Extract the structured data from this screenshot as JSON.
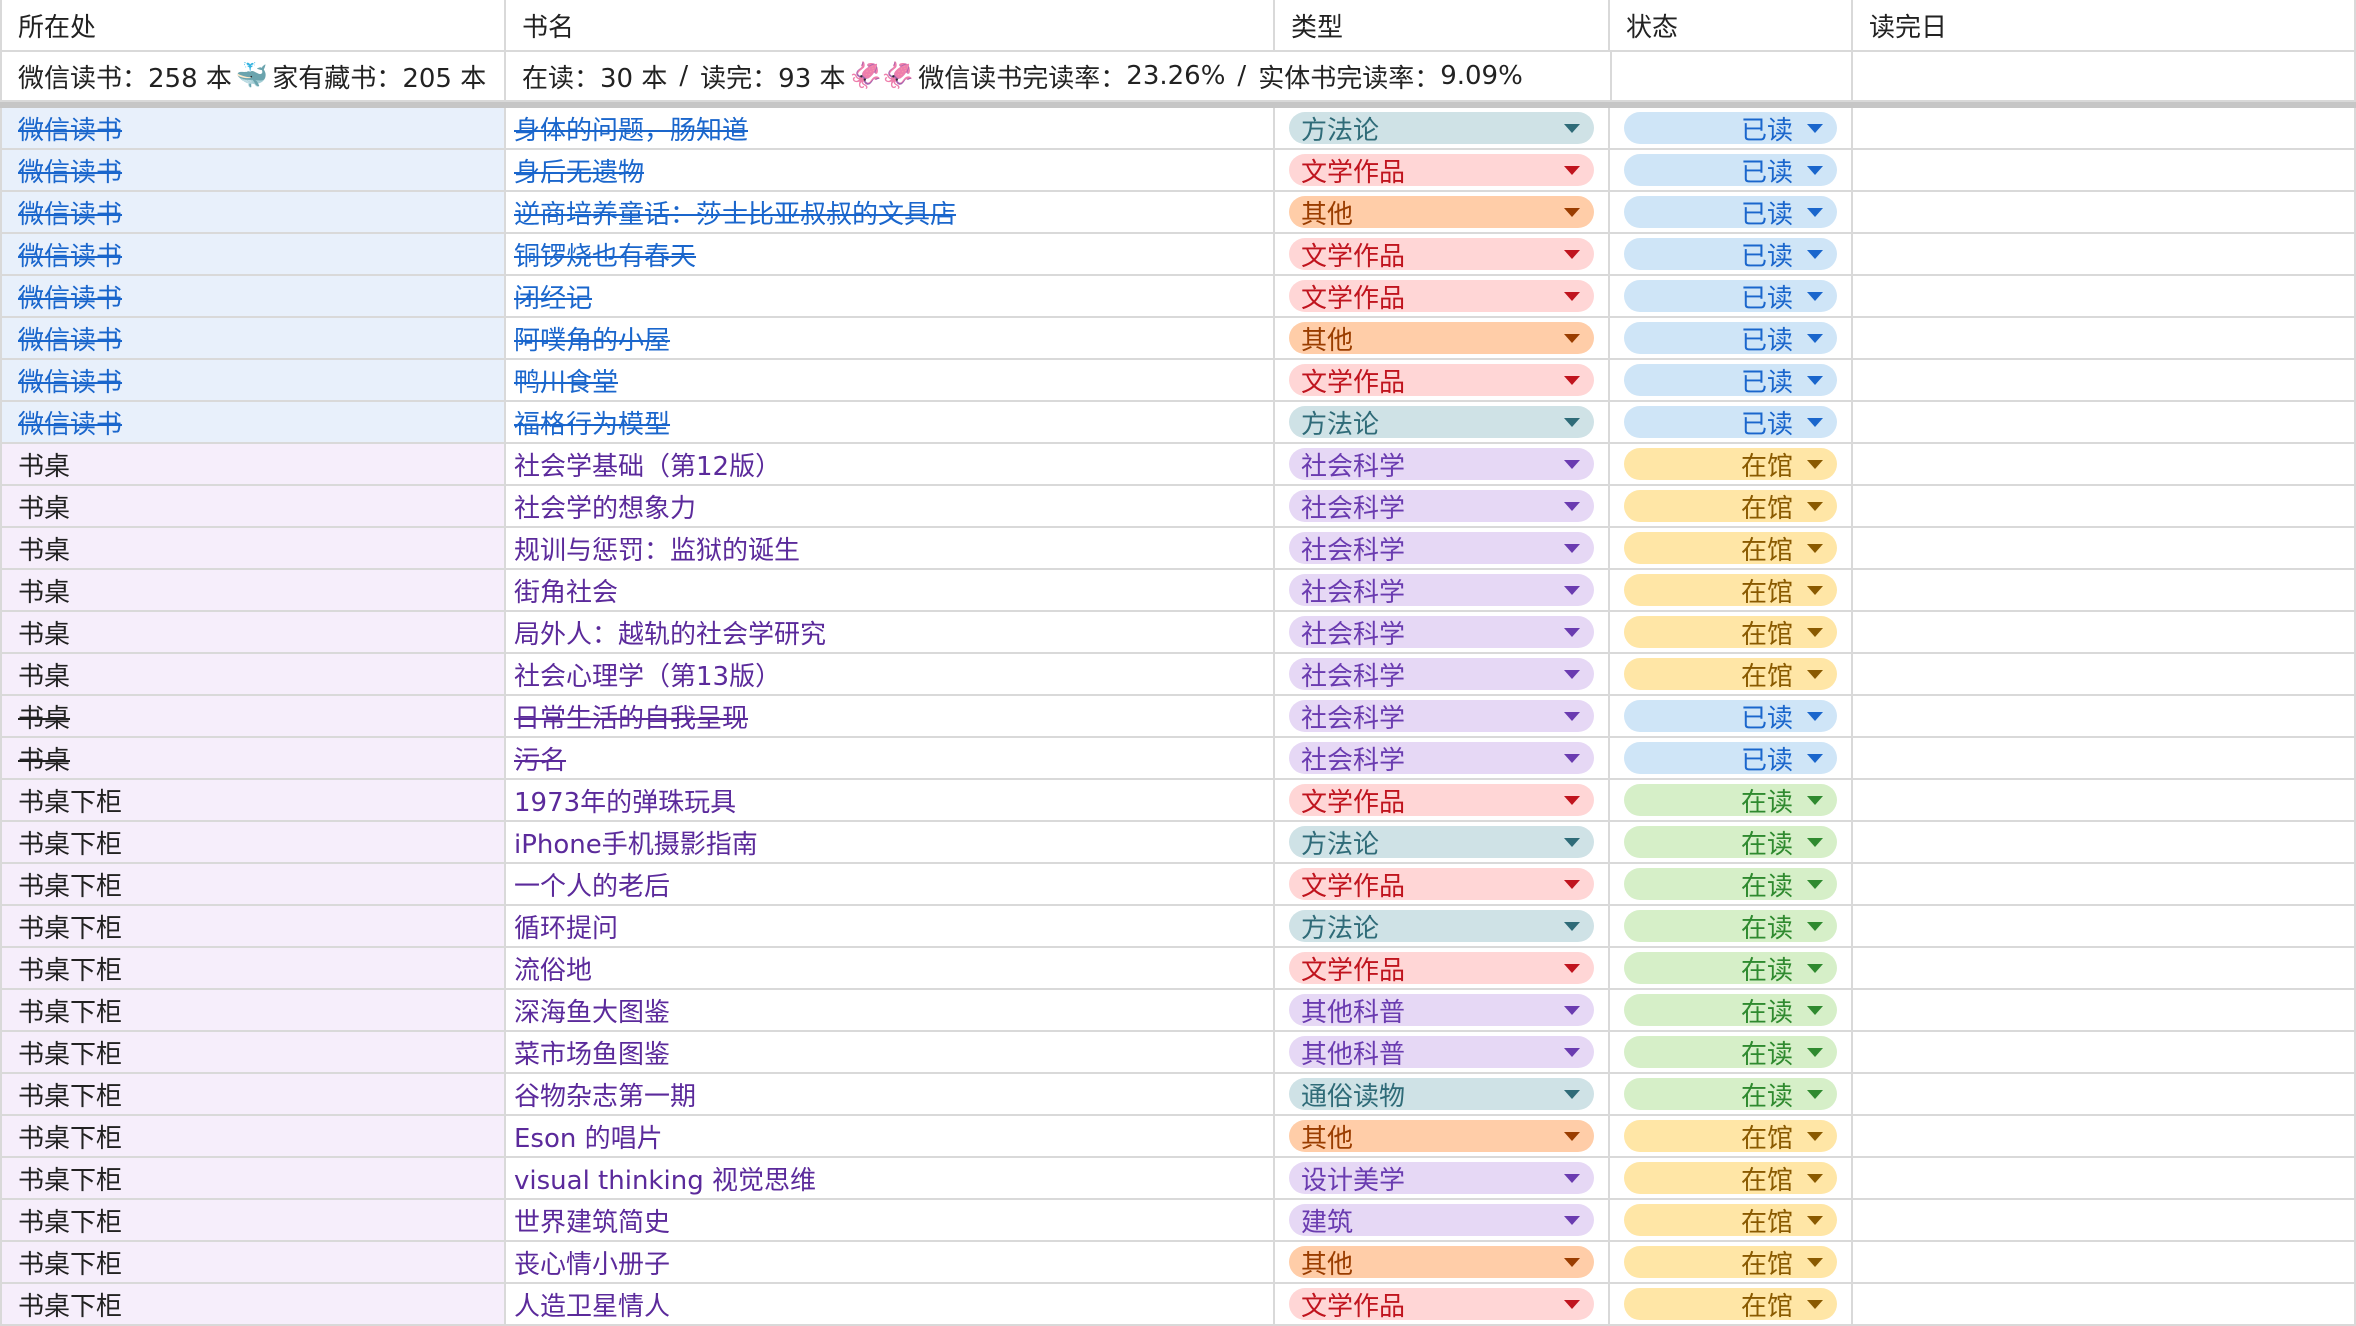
{
  "headers": {
    "location": "所在处",
    "title": "书名",
    "type": "类型",
    "status": "状态",
    "finish_date": "读完日"
  },
  "summary": {
    "wechat_label": "微信读书：",
    "wechat_count": "258 本",
    "whale_emoji": "🐳",
    "home_label": "家有藏书：",
    "home_count": "205 本",
    "reading_label": "在读：",
    "reading_count": "30 本",
    "slash1": "/",
    "read_label": "读完：",
    "read_count": "93 本",
    "squid_emoji": "🦑🦑",
    "wechat_rate_label": "微信读书完读率：",
    "wechat_rate": "23.26%",
    "slash2": "/",
    "physical_rate_label": "实体书完读率：",
    "physical_rate": "9.09%"
  },
  "type_colors": {
    "方法论": {
      "bg": "#cfe2e6",
      "fg": "#2f6b78",
      "tri": "#2f6b78"
    },
    "文学作品": {
      "bg": "#ffd6d6",
      "fg": "#c0141e",
      "tri": "#c0141e"
    },
    "其他": {
      "bg": "#ffcda8",
      "fg": "#9a3d00",
      "tri": "#9a3d00"
    },
    "社会科学": {
      "bg": "#e6d8f5",
      "fg": "#6a3bb0",
      "tri": "#6a3bb0"
    },
    "其他科普": {
      "bg": "#e6d8f5",
      "fg": "#6a3bb0",
      "tri": "#6a3bb0"
    },
    "通俗读物": {
      "bg": "#cfe2e6",
      "fg": "#2f6b78",
      "tri": "#2f6b78"
    },
    "设计美学": {
      "bg": "#e6d8f5",
      "fg": "#6a3bb0",
      "tri": "#6a3bb0"
    },
    "建筑": {
      "bg": "#e6d8f5",
      "fg": "#6a3bb0",
      "tri": "#6a3bb0"
    }
  },
  "status_colors": {
    "已读": {
      "bg": "#cfe5f7",
      "fg": "#1a66cc",
      "tri": "#1a66cc"
    },
    "在馆": {
      "bg": "#ffe6a6",
      "fg": "#8a5a00",
      "tri": "#8a5a00"
    },
    "在读": {
      "bg": "#d6efc8",
      "fg": "#2f8a2f",
      "tri": "#2f8a2f"
    }
  },
  "rows": [
    {
      "location": "微信读书",
      "title": "身体的问题，肠知道",
      "type": "方法论",
      "status": "已读",
      "strike_loc": true,
      "strike_title": true,
      "loc_style": "wechat"
    },
    {
      "location": "微信读书",
      "title": "身后无遗物",
      "type": "文学作品",
      "status": "已读",
      "strike_loc": true,
      "strike_title": true,
      "loc_style": "wechat"
    },
    {
      "location": "微信读书",
      "title": "逆商培养童话：莎士比亚叔叔的文具店",
      "type": "其他",
      "status": "已读",
      "strike_loc": true,
      "strike_title": true,
      "loc_style": "wechat"
    },
    {
      "location": "微信读书",
      "title": "铜锣烧也有春天",
      "type": "文学作品",
      "status": "已读",
      "strike_loc": true,
      "strike_title": true,
      "loc_style": "wechat"
    },
    {
      "location": "微信读书",
      "title": "闭经记",
      "type": "文学作品",
      "status": "已读",
      "strike_loc": true,
      "strike_title": true,
      "loc_style": "wechat"
    },
    {
      "location": "微信读书",
      "title": "阿噗角的小屋",
      "type": "其他",
      "status": "已读",
      "strike_loc": true,
      "strike_title": true,
      "loc_style": "wechat"
    },
    {
      "location": "微信读书",
      "title": "鸭川食堂",
      "type": "文学作品",
      "status": "已读",
      "strike_loc": true,
      "strike_title": true,
      "loc_style": "wechat"
    },
    {
      "location": "微信读书",
      "title": "福格行为模型",
      "type": "方法论",
      "status": "已读",
      "strike_loc": true,
      "strike_title": true,
      "loc_style": "wechat"
    },
    {
      "location": "书桌",
      "title": "社会学基础（第12版）",
      "type": "社会科学",
      "status": "在馆",
      "strike_loc": false,
      "strike_title": false,
      "loc_style": "desk"
    },
    {
      "location": "书桌",
      "title": "社会学的想象力",
      "type": "社会科学",
      "status": "在馆",
      "strike_loc": false,
      "strike_title": false,
      "loc_style": "desk"
    },
    {
      "location": "书桌",
      "title": "规训与惩罚：监狱的诞生",
      "type": "社会科学",
      "status": "在馆",
      "strike_loc": false,
      "strike_title": false,
      "loc_style": "desk"
    },
    {
      "location": "书桌",
      "title": "街角社会",
      "type": "社会科学",
      "status": "在馆",
      "strike_loc": false,
      "strike_title": false,
      "loc_style": "desk"
    },
    {
      "location": "书桌",
      "title": "局外人：越轨的社会学研究",
      "type": "社会科学",
      "status": "在馆",
      "strike_loc": false,
      "strike_title": false,
      "loc_style": "desk"
    },
    {
      "location": "书桌",
      "title": "社会心理学（第13版）",
      "type": "社会科学",
      "status": "在馆",
      "strike_loc": false,
      "strike_title": false,
      "loc_style": "desk"
    },
    {
      "location": "书桌",
      "title": "日常生活的自我呈现",
      "type": "社会科学",
      "status": "已读",
      "strike_loc": true,
      "strike_title": true,
      "loc_style": "desk"
    },
    {
      "location": "书桌",
      "title": "污名",
      "type": "社会科学",
      "status": "已读",
      "strike_loc": true,
      "strike_title": true,
      "loc_style": "desk"
    },
    {
      "location": "书桌下柜",
      "title": "1973年的弹珠玩具",
      "type": "文学作品",
      "status": "在读",
      "strike_loc": false,
      "strike_title": false,
      "loc_style": "desk"
    },
    {
      "location": "书桌下柜",
      "title": "iPhone手机摄影指南",
      "type": "方法论",
      "status": "在读",
      "strike_loc": false,
      "strike_title": false,
      "loc_style": "desk"
    },
    {
      "location": "书桌下柜",
      "title": "一个人的老后",
      "type": "文学作品",
      "status": "在读",
      "strike_loc": false,
      "strike_title": false,
      "loc_style": "desk"
    },
    {
      "location": "书桌下柜",
      "title": "循环提问",
      "type": "方法论",
      "status": "在读",
      "strike_loc": false,
      "strike_title": false,
      "loc_style": "desk"
    },
    {
      "location": "书桌下柜",
      "title": "流俗地",
      "type": "文学作品",
      "status": "在读",
      "strike_loc": false,
      "strike_title": false,
      "loc_style": "desk"
    },
    {
      "location": "书桌下柜",
      "title": "深海鱼大图鉴",
      "type": "其他科普",
      "status": "在读",
      "strike_loc": false,
      "strike_title": false,
      "loc_style": "desk"
    },
    {
      "location": "书桌下柜",
      "title": "菜市场鱼图鉴",
      "type": "其他科普",
      "status": "在读",
      "strike_loc": false,
      "strike_title": false,
      "loc_style": "desk"
    },
    {
      "location": "书桌下柜",
      "title": "谷物杂志第一期",
      "type": "通俗读物",
      "status": "在读",
      "strike_loc": false,
      "strike_title": false,
      "loc_style": "desk"
    },
    {
      "location": "书桌下柜",
      "title": "Eson 的唱片",
      "type": "其他",
      "status": "在馆",
      "strike_loc": false,
      "strike_title": false,
      "loc_style": "desk"
    },
    {
      "location": "书桌下柜",
      "title": "visual thinking 视觉思维",
      "type": "设计美学",
      "status": "在馆",
      "strike_loc": false,
      "strike_title": false,
      "loc_style": "desk"
    },
    {
      "location": "书桌下柜",
      "title": "世界建筑简史",
      "type": "建筑",
      "status": "在馆",
      "strike_loc": false,
      "strike_title": false,
      "loc_style": "desk"
    },
    {
      "location": "书桌下柜",
      "title": "丧心情小册子",
      "type": "其他",
      "status": "在馆",
      "strike_loc": false,
      "strike_title": false,
      "loc_style": "desk"
    },
    {
      "location": "书桌下柜",
      "title": "人造卫星情人",
      "type": "文学作品",
      "status": "在馆",
      "strike_loc": false,
      "strike_title": false,
      "loc_style": "desk"
    }
  ]
}
